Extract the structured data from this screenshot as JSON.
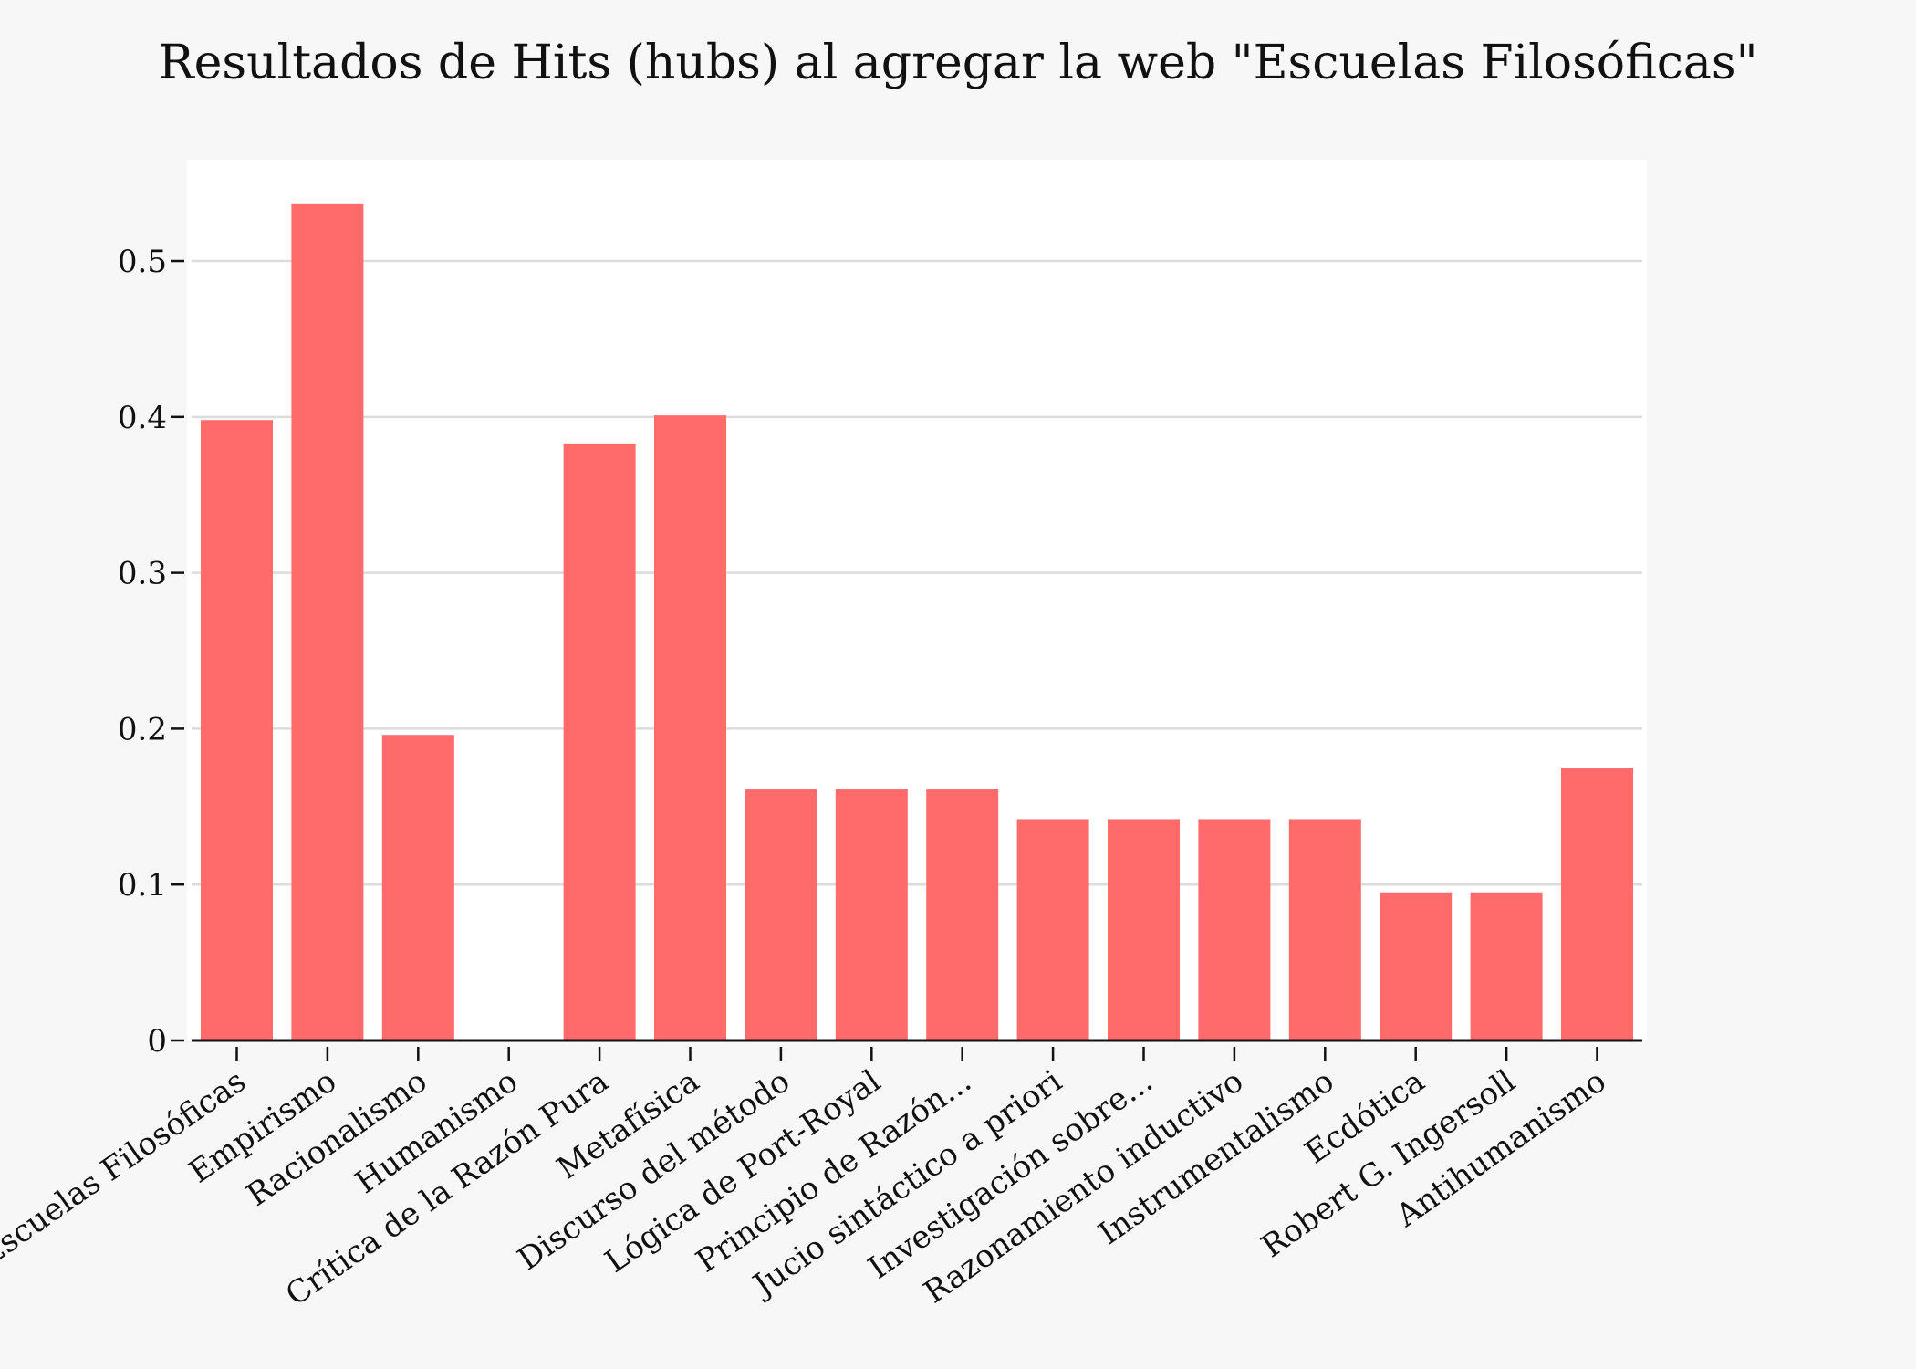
{
  "chart_data": {
    "type": "bar",
    "title": "Resultados de Hits (hubs) al agregar la web \"Escuelas Filosóficas\"",
    "xlabel": "",
    "ylabel": "",
    "categories": [
      "Escuelas Filosóficas",
      "Empirismo",
      "Racionalismo",
      "Humanismo",
      "Crítica de la Razón Pura",
      "Metafísica",
      "Discurso del método",
      "Lógica de Port-Royal",
      "Principio de Razón...",
      "Jucio sintáctico a priori",
      "Investigación sobre...",
      "Razonamiento inductivo",
      "Instrumentalismo",
      "Ecdótica",
      "Robert G. Ingersoll",
      "Antihumanismo"
    ],
    "values": [
      0.398,
      0.537,
      0.196,
      0.0,
      0.383,
      0.401,
      0.161,
      0.161,
      0.161,
      0.142,
      0.142,
      0.142,
      0.142,
      0.095,
      0.095,
      0.175
    ],
    "ylim": [
      0,
      0.565
    ],
    "yticks": [
      0,
      0.1,
      0.2,
      0.3,
      0.4,
      0.5
    ],
    "ytick_labels": [
      "0",
      "0.1",
      "0.2",
      "0.3",
      "0.4",
      "0.5"
    ],
    "grid": true,
    "legend": "none",
    "bar_color": "#ff6b6b",
    "grid_color": "#dcdcdc",
    "plot_background": "#ffffff",
    "page_background": "#f7f7f7"
  }
}
